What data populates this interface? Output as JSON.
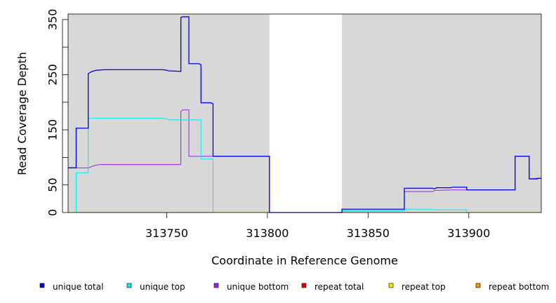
{
  "chart_data": {
    "type": "line",
    "step": true,
    "xlabel": "Coordinate in Reference Genome",
    "ylabel": "Read Coverage Depth",
    "xlim": [
      313701,
      313936
    ],
    "ylim": [
      0,
      360
    ],
    "x_ticks": [
      313750,
      313800,
      313850,
      313900
    ],
    "y_ticks": [
      0,
      50,
      100,
      150,
      200,
      250,
      300,
      350
    ],
    "y_tick_labels": [
      {
        "value": 0,
        "label": "0"
      },
      {
        "value": 50,
        "label": "50"
      },
      {
        "value": 150,
        "label": "150"
      },
      {
        "value": 250,
        "label": "250"
      },
      {
        "value": 350,
        "label": "350"
      }
    ],
    "background_color": "#d8d8d8",
    "uncovered_regions": [
      [
        313801,
        313837
      ]
    ],
    "series": [
      {
        "name": "unique total",
        "color": "#0000ee",
        "points": [
          [
            313701,
            81
          ],
          [
            313705,
            81
          ],
          [
            313705,
            153
          ],
          [
            313711,
            153
          ],
          [
            313711,
            252
          ],
          [
            313712,
            254
          ],
          [
            313713,
            256
          ],
          [
            313715,
            258
          ],
          [
            313719,
            259
          ],
          [
            313748,
            259
          ],
          [
            313750,
            258
          ],
          [
            313751,
            257
          ],
          [
            313757,
            256
          ],
          [
            313757,
            354
          ],
          [
            313758,
            355
          ],
          [
            313761,
            355
          ],
          [
            313761,
            270
          ],
          [
            313766,
            270
          ],
          [
            313767,
            268
          ],
          [
            313767,
            199
          ],
          [
            313772,
            199
          ],
          [
            313773,
            197
          ],
          [
            313773,
            102
          ],
          [
            313801,
            102
          ],
          [
            313801,
            0
          ],
          [
            313837,
            0
          ],
          [
            313837,
            6
          ],
          [
            313868,
            6
          ],
          [
            313868,
            44
          ],
          [
            313882,
            44
          ],
          [
            313883,
            43
          ],
          [
            313884,
            45
          ],
          [
            313891,
            45
          ],
          [
            313892,
            46
          ],
          [
            313899,
            46
          ],
          [
            313899,
            41
          ],
          [
            313923,
            41
          ],
          [
            313923,
            102
          ],
          [
            313930,
            102
          ],
          [
            313930,
            61
          ],
          [
            313934,
            61
          ],
          [
            313934,
            62
          ],
          [
            313936,
            62
          ]
        ]
      },
      {
        "name": "unique top",
        "color": "#00eeee",
        "points": [
          [
            313701,
            0
          ],
          [
            313705,
            0
          ],
          [
            313705,
            72
          ],
          [
            313711,
            72
          ],
          [
            313711,
            171
          ],
          [
            313747,
            171
          ],
          [
            313750,
            170
          ],
          [
            313751,
            168
          ],
          [
            313767,
            168
          ],
          [
            313767,
            97
          ],
          [
            313773,
            97
          ],
          [
            313773,
            0
          ],
          [
            313801,
            0
          ],
          [
            313837,
            0
          ],
          [
            313837,
            3
          ],
          [
            313868,
            3
          ],
          [
            313868,
            6
          ],
          [
            313882,
            6
          ],
          [
            313883,
            5
          ],
          [
            313899,
            5
          ],
          [
            313899,
            0
          ],
          [
            313936,
            0
          ]
        ]
      },
      {
        "name": "unique bottom",
        "color": "#a020f0",
        "points": [
          [
            313701,
            81
          ],
          [
            313711,
            81
          ],
          [
            313712,
            82
          ],
          [
            313713,
            84
          ],
          [
            313715,
            86
          ],
          [
            313717,
            87
          ],
          [
            313757,
            87
          ],
          [
            313757,
            184
          ],
          [
            313758,
            186
          ],
          [
            313761,
            186
          ],
          [
            313761,
            102
          ],
          [
            313801,
            102
          ],
          [
            313801,
            0
          ],
          [
            313837,
            0
          ],
          [
            313837,
            3
          ],
          [
            313868,
            3
          ],
          [
            313868,
            38
          ],
          [
            313882,
            38
          ],
          [
            313883,
            40
          ],
          [
            313892,
            41
          ],
          [
            313899,
            41
          ],
          [
            313923,
            41
          ],
          [
            313923,
            102
          ],
          [
            313930,
            102
          ],
          [
            313930,
            61
          ],
          [
            313936,
            62
          ]
        ]
      },
      {
        "name": "repeat total",
        "color": "#ee0000",
        "points": [
          [
            313701,
            0
          ],
          [
            313936,
            0
          ]
        ]
      },
      {
        "name": "repeat top",
        "color": "#eeee00",
        "points": [
          [
            313701,
            0
          ],
          [
            313936,
            0
          ]
        ]
      },
      {
        "name": "repeat bottom",
        "color": "#ee9a00",
        "points": [
          [
            313705,
            0
          ],
          [
            313773,
            0
          ]
        ]
      }
    ],
    "legend": {
      "placement": "bottom"
    }
  }
}
